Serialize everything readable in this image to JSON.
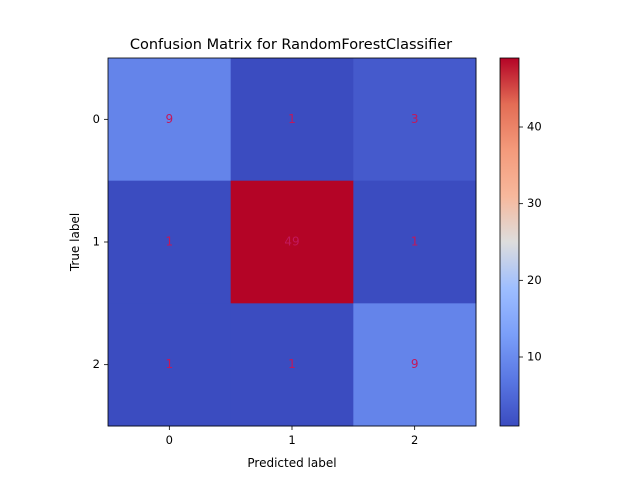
{
  "chart_data": {
    "type": "heatmap",
    "title": "Confusion Matrix for RandomForestClassifier",
    "xlabel": "Predicted label",
    "ylabel": "True label",
    "x_categories": [
      "0",
      "1",
      "2"
    ],
    "y_categories": [
      "0",
      "1",
      "2"
    ],
    "values": [
      [
        9,
        1,
        3
      ],
      [
        1,
        49,
        1
      ],
      [
        1,
        1,
        9
      ]
    ],
    "colormap": "coolwarm",
    "vmin": 1,
    "vmax": 49,
    "colorbar_ticks": [
      10,
      20,
      30,
      40
    ],
    "annotation_color": "#c2185b",
    "grid": false,
    "legend": "colorbar right"
  }
}
